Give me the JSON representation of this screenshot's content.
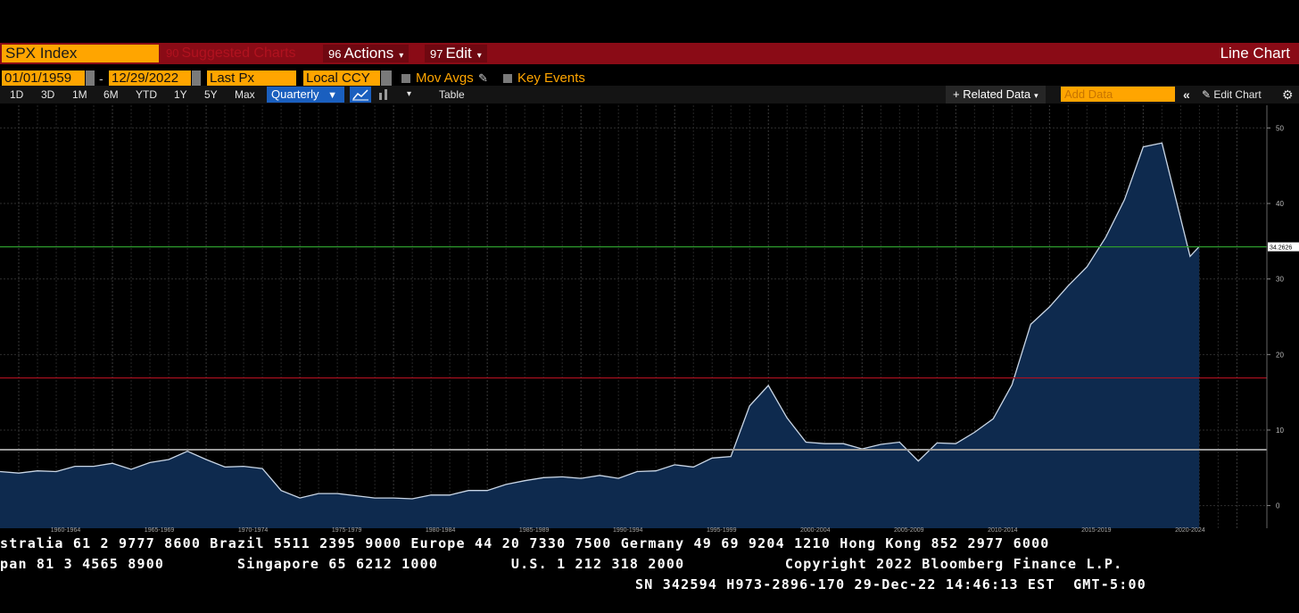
{
  "toolbar": {
    "security": "SPX Index",
    "suggested_num": "90",
    "suggested": "Suggested Charts",
    "actions_num": "96",
    "actions": "Actions",
    "edit_num": "97",
    "edit": "Edit",
    "title": "Line Chart"
  },
  "options": {
    "start_date": "01/01/1959",
    "end_date": "12/29/2022",
    "field": "Last Px",
    "currency": "Local CCY",
    "mov_avgs": "Mov Avgs",
    "key_events": "Key Events"
  },
  "periods": [
    "1D",
    "3D",
    "1M",
    "6M",
    "YTD",
    "1Y",
    "5Y",
    "Max"
  ],
  "frequency": "Quarterly",
  "table_label": "Table",
  "related_data": "Related Data",
  "add_data_placeholder": "Add Data",
  "edit_chart": "Edit Chart",
  "colors": {
    "accent_orange": "#ffa500",
    "toolbar_red": "#8a0b16",
    "area_fill": "#0e2a4e",
    "green_line": "#2d9a2d",
    "red_line": "#b01020",
    "gray_line": "#9a9a9a"
  },
  "chart_data": {
    "type": "area",
    "series": [
      {
        "x": [
          1959,
          1960,
          1961,
          1962,
          1963,
          1964,
          1965,
          1966,
          1967,
          1968,
          1969,
          1970,
          1971,
          1972,
          1973,
          1974,
          1975,
          1976,
          1977,
          1978,
          1979,
          1980,
          1981,
          1982,
          1983,
          1984,
          1985,
          1986,
          1987,
          1988,
          1989,
          1990,
          1991,
          1992,
          1993,
          1994,
          1995,
          1996,
          1997,
          1998,
          1999,
          2000,
          2001,
          2002,
          2003,
          2004,
          2005,
          2006,
          2007,
          2008,
          2009,
          2010,
          2011,
          2012,
          2013,
          2014,
          2015,
          2016,
          2017,
          2018,
          2019,
          2020,
          2021,
          2022.5,
          2022.99
        ],
        "values": [
          4.5,
          4.3,
          4.6,
          4.5,
          5.2,
          5.2,
          5.6,
          4.8,
          5.7,
          6.1,
          7.2,
          6.1,
          5.1,
          5.2,
          4.9,
          2.0,
          1.0,
          1.6,
          1.6,
          1.3,
          1.0,
          1.0,
          0.9,
          1.4,
          1.4,
          2.0,
          2.0,
          2.8,
          3.3,
          3.7,
          3.8,
          3.6,
          4.0,
          3.6,
          4.5,
          4.6,
          5.4,
          5.1,
          6.3,
          6.5,
          13.2,
          15.9,
          11.6,
          8.4,
          8.2,
          8.2,
          7.5,
          8.1,
          8.4,
          5.9,
          8.3,
          8.2,
          9.7,
          11.5,
          16.0,
          24.0,
          26.3,
          29.1,
          31.6,
          35.5,
          40.5,
          47.5,
          48.0,
          33.0,
          34.3
        ]
      }
    ],
    "yticks": [
      0,
      10,
      20,
      30,
      40,
      50
    ],
    "ylim": [
      -3,
      53
    ],
    "xtick_labels": [
      "1960-1964",
      "1965-1969",
      "1970-1974",
      "1975-1979",
      "1980-1984",
      "1985-1989",
      "1990-1994",
      "1995-1999",
      "2000-2004",
      "2005-2009",
      "2010-2014",
      "2015-2019",
      "2020-2024"
    ],
    "hlines": [
      {
        "value": 34.2626,
        "label": "34.2626"
      },
      {
        "value": 16.9
      },
      {
        "value": 7.4
      }
    ],
    "last_value_label": "34.2626",
    "grid": true
  },
  "ticker": {
    "line1": "stralia 61 2 9777 8600 Brazil 5511 2395 9000 Europe 44 20 7330 7500 Germany 49 69 9204 1210 Hong Kong 852 2977 6000",
    "line2": "pan 81 3 4565 8900        Singapore 65 6212 1000        U.S. 1 212 318 2000           Copyright 2022 Bloomberg Finance L.P.",
    "line3": "SN 342594 H973-2896-170 29-Dec-22 14:46:13 EST  GMT-5:00"
  }
}
